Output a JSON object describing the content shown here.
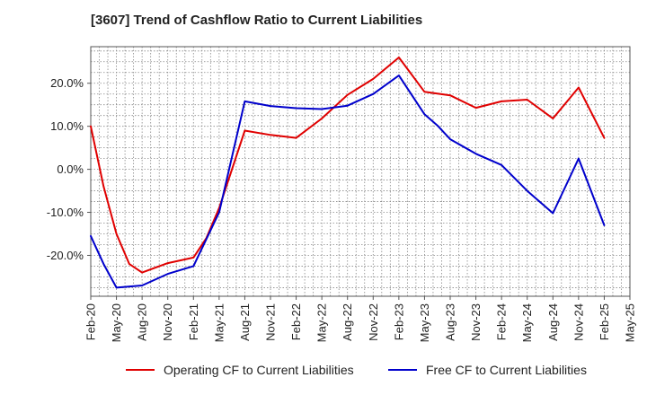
{
  "colors": {
    "operating": "#e00000",
    "free": "#0000cc",
    "grid": "#888888",
    "axis": "#555555"
  },
  "chart_data": {
    "type": "line",
    "title": "[3607]  Trend of Cashflow Ratio to Current Liabilities",
    "x": [
      "Feb-20",
      "May-20",
      "Aug-20",
      "Nov-20",
      "Feb-21",
      "May-21",
      "Aug-21",
      "Nov-21",
      "Feb-22",
      "May-22",
      "Aug-22",
      "Nov-22",
      "Feb-23",
      "May-23",
      "Aug-23",
      "Nov-23",
      "Feb-24",
      "May-24",
      "Aug-24",
      "Nov-24",
      "Feb-25",
      "May-25"
    ],
    "x_tick_labels": [
      "Feb-20",
      "May-20",
      "Aug-20",
      "Nov-20",
      "Feb-21",
      "May-21",
      "Aug-21",
      "Nov-21",
      "Feb-22",
      "May-22",
      "Aug-22",
      "Nov-22",
      "Feb-23",
      "May-23",
      "Aug-23",
      "Nov-23",
      "Feb-24",
      "May-24",
      "Aug-24",
      "Nov-24",
      "Feb-25",
      "May-25"
    ],
    "y_ticks": [
      -20,
      -10,
      0,
      10,
      20
    ],
    "y_tick_labels": [
      "-20.0%",
      "-10.0%",
      "0.0%",
      "10.0%",
      "20.0%"
    ],
    "ylim": [
      -29.5,
      28.5
    ],
    "grid": true,
    "legend_position": "bottom",
    "series": [
      {
        "name": "Operating CF to Current Liabilities",
        "color": "#e00000",
        "points": [
          [
            0,
            10
          ],
          [
            0.5,
            -4
          ],
          [
            1,
            -15
          ],
          [
            1.5,
            -22
          ],
          [
            2,
            -24
          ],
          [
            3,
            -21.8
          ],
          [
            4,
            -20.5
          ],
          [
            4.5,
            -16
          ],
          [
            5,
            -9
          ],
          [
            6,
            9
          ],
          [
            7,
            8
          ],
          [
            8,
            7.3
          ],
          [
            9,
            11.8
          ],
          [
            10,
            17.3
          ],
          [
            11,
            21
          ],
          [
            12,
            26
          ],
          [
            13,
            18
          ],
          [
            14,
            17.2
          ],
          [
            15,
            14.3
          ],
          [
            16,
            15.8
          ],
          [
            17,
            16.2
          ],
          [
            18,
            11.8
          ],
          [
            19,
            19
          ],
          [
            20,
            7.3
          ]
        ]
      },
      {
        "name": "Free CF to Current Liabilities",
        "color": "#0000cc",
        "points": [
          [
            0,
            -15.5
          ],
          [
            0.5,
            -22
          ],
          [
            1,
            -27.5
          ],
          [
            2,
            -27
          ],
          [
            3,
            -24.3
          ],
          [
            4,
            -22.5
          ],
          [
            5,
            -10
          ],
          [
            6,
            15.8
          ],
          [
            7,
            14.7
          ],
          [
            8,
            14.2
          ],
          [
            9,
            14
          ],
          [
            10,
            14.8
          ],
          [
            11,
            17.5
          ],
          [
            12,
            21.8
          ],
          [
            13,
            12.8
          ],
          [
            13.5,
            10.2
          ],
          [
            14,
            7
          ],
          [
            15,
            3.6
          ],
          [
            16,
            1
          ],
          [
            17,
            -5
          ],
          [
            18,
            -10.2
          ],
          [
            19,
            2.5
          ],
          [
            20,
            -13
          ]
        ]
      }
    ]
  }
}
